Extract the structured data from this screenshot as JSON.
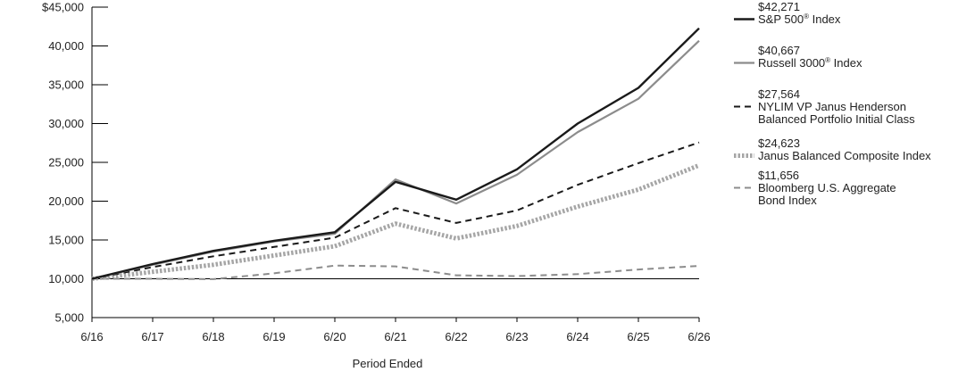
{
  "chart_data": {
    "type": "line",
    "title": "",
    "xlabel": "Period Ended",
    "ylabel": "",
    "categories": [
      "6/16",
      "6/17",
      "6/18",
      "6/19",
      "6/20",
      "6/21",
      "6/22",
      "6/23",
      "6/24",
      "6/25",
      "6/26"
    ],
    "y_ticks": [
      "$45,000",
      "40,000",
      "35,000",
      "30,000",
      "25,000",
      "20,000",
      "15,000",
      "10,000",
      "5,000"
    ],
    "ylim": [
      5000,
      45000
    ],
    "grid": false,
    "legend_position": "right",
    "series": [
      {
        "name": "S&P 500",
        "mark": "®",
        "name_suffix": " Index",
        "end_value": "$42,271",
        "color": "#1a1a1a",
        "style": "solid-thick",
        "values": [
          10000,
          11900,
          13600,
          14900,
          16000,
          22500,
          20200,
          24100,
          30000,
          34600,
          42271
        ]
      },
      {
        "name": "Russell 3000",
        "mark": "®",
        "name_suffix": " Index",
        "end_value": "$40,667",
        "color": "#8c8c8c",
        "style": "solid",
        "values": [
          10000,
          11800,
          13500,
          14800,
          15800,
          22800,
          19700,
          23400,
          28900,
          33200,
          40667
        ]
      },
      {
        "name_lines": [
          "NYLIM VP Janus Henderson",
          "Balanced Portfolio Initial Class"
        ],
        "end_value": "$27,564",
        "color": "#1a1a1a",
        "style": "dashed",
        "values": [
          10000,
          11500,
          12900,
          14100,
          15300,
          19100,
          17200,
          18800,
          22100,
          24900,
          27564
        ]
      },
      {
        "name": "Janus Balanced Composite Index",
        "end_value": "$24,623",
        "color": "#a6a6a6",
        "style": "dotted-thick",
        "values": [
          10000,
          10900,
          11800,
          13000,
          14200,
          17100,
          15200,
          16800,
          19300,
          21500,
          24623
        ]
      },
      {
        "name_lines": [
          "Bloomberg U.S. Aggregate",
          "Bond Index"
        ],
        "end_value": "$11,656",
        "color": "#8c8c8c",
        "style": "dashed",
        "values": [
          10000,
          10000,
          9950,
          10700,
          11700,
          11600,
          10450,
          10350,
          10600,
          11200,
          11656
        ]
      }
    ]
  }
}
